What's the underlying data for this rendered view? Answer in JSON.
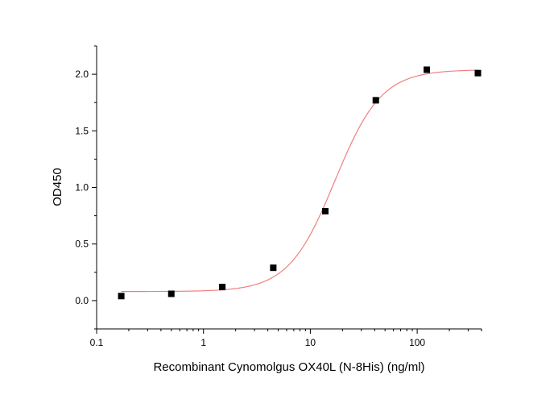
{
  "chart_data": {
    "type": "scatter",
    "xlabel": "Recombinant Cynomolgus OX40L (N-8His) (ng/ml)",
    "ylabel": "OD450",
    "x_scale": "log",
    "xlim": [
      0.1,
      400
    ],
    "ylim": [
      -0.25,
      2.25
    ],
    "x_ticks": [
      0.1,
      1,
      10,
      100
    ],
    "x_tick_labels": [
      "0.1",
      "1",
      "10",
      "100"
    ],
    "y_ticks": [
      0.0,
      0.5,
      1.0,
      1.5,
      2.0
    ],
    "y_tick_labels": [
      "0.0",
      "0.5",
      "1.0",
      "1.5",
      "2.0"
    ],
    "grid": false,
    "series": [
      {
        "marker": "square",
        "color": "#000000",
        "x": [
          0.17,
          0.5,
          1.5,
          4.5,
          13.8,
          41,
          123,
          370
        ],
        "y": [
          0.04,
          0.06,
          0.12,
          0.29,
          0.79,
          1.77,
          2.04,
          2.01
        ]
      }
    ],
    "fit": {
      "model": "4PL",
      "color": "#f08080",
      "bottom": 0.08,
      "top": 2.04,
      "ec50": 17,
      "hill": 2.0
    }
  }
}
